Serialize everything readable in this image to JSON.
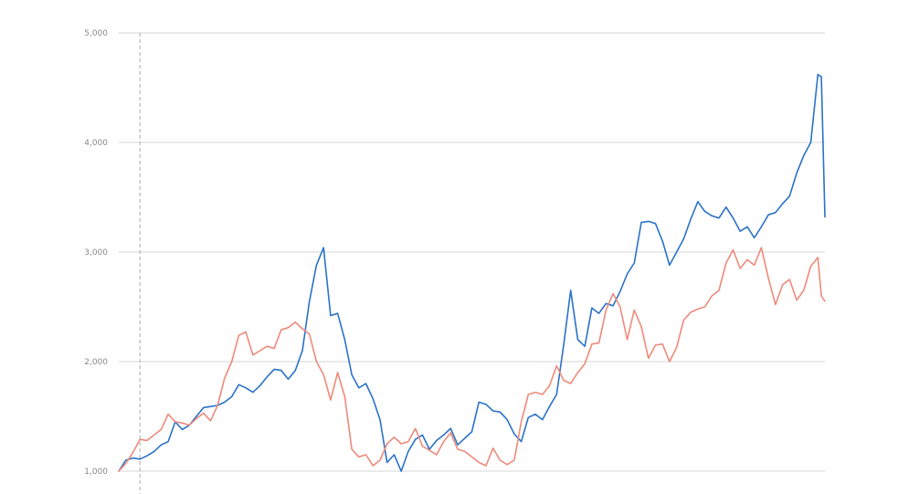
{
  "chart_data": {
    "type": "line",
    "title": "",
    "xlabel": "",
    "ylabel": "",
    "grid": true,
    "legend": "none",
    "x_index_range": [
      0,
      100
    ],
    "ylim": [
      1000,
      5000
    ],
    "y_ticks": [
      {
        "value": 1000,
        "label": "1,000"
      },
      {
        "value": 2000,
        "label": "2,000"
      },
      {
        "value": 3000,
        "label": "3,000"
      },
      {
        "value": 4000,
        "label": "4,000"
      },
      {
        "value": 5000,
        "label": "5,000"
      }
    ],
    "marker_x": 3,
    "series": [
      {
        "color": "#2a72c9",
        "values": [
          [
            0,
            1000
          ],
          [
            1,
            1100
          ],
          [
            2,
            1120
          ],
          [
            3,
            1110
          ],
          [
            4,
            1140
          ],
          [
            5,
            1180
          ],
          [
            6,
            1240
          ],
          [
            7,
            1270
          ],
          [
            8,
            1450
          ],
          [
            9,
            1380
          ],
          [
            10,
            1420
          ],
          [
            11,
            1500
          ],
          [
            12,
            1580
          ],
          [
            13,
            1590
          ],
          [
            14,
            1600
          ],
          [
            15,
            1630
          ],
          [
            16,
            1680
          ],
          [
            17,
            1790
          ],
          [
            18,
            1760
          ],
          [
            19,
            1720
          ],
          [
            20,
            1780
          ],
          [
            21,
            1860
          ],
          [
            22,
            1930
          ],
          [
            23,
            1920
          ],
          [
            24,
            1840
          ],
          [
            25,
            1920
          ],
          [
            26,
            2100
          ],
          [
            27,
            2550
          ],
          [
            28,
            2880
          ],
          [
            29,
            3040
          ],
          [
            30,
            2420
          ],
          [
            31,
            2440
          ],
          [
            32,
            2200
          ],
          [
            33,
            1880
          ],
          [
            34,
            1760
          ],
          [
            35,
            1800
          ],
          [
            36,
            1660
          ],
          [
            37,
            1470
          ],
          [
            38,
            1080
          ],
          [
            39,
            1150
          ],
          [
            40,
            1000
          ],
          [
            41,
            1180
          ],
          [
            42,
            1290
          ],
          [
            43,
            1330
          ],
          [
            44,
            1200
          ],
          [
            45,
            1280
          ],
          [
            46,
            1330
          ],
          [
            47,
            1390
          ],
          [
            48,
            1240
          ],
          [
            49,
            1300
          ],
          [
            50,
            1360
          ],
          [
            51,
            1630
          ],
          [
            52,
            1610
          ],
          [
            53,
            1550
          ],
          [
            54,
            1540
          ],
          [
            55,
            1470
          ],
          [
            56,
            1340
          ],
          [
            57,
            1270
          ],
          [
            58,
            1490
          ],
          [
            59,
            1520
          ],
          [
            60,
            1470
          ],
          [
            61,
            1590
          ],
          [
            62,
            1700
          ],
          [
            63,
            2150
          ],
          [
            64,
            2650
          ],
          [
            65,
            2200
          ],
          [
            66,
            2140
          ],
          [
            67,
            2490
          ],
          [
            68,
            2440
          ],
          [
            69,
            2530
          ],
          [
            70,
            2510
          ],
          [
            71,
            2640
          ],
          [
            72,
            2800
          ],
          [
            73,
            2900
          ],
          [
            74,
            3270
          ],
          [
            75,
            3280
          ],
          [
            76,
            3260
          ],
          [
            77,
            3100
          ],
          [
            78,
            2880
          ],
          [
            79,
            3000
          ],
          [
            80,
            3120
          ],
          [
            81,
            3300
          ],
          [
            82,
            3460
          ],
          [
            83,
            3370
          ],
          [
            84,
            3330
          ],
          [
            85,
            3310
          ],
          [
            86,
            3410
          ],
          [
            87,
            3310
          ],
          [
            88,
            3190
          ],
          [
            89,
            3230
          ],
          [
            90,
            3130
          ],
          [
            91,
            3230
          ],
          [
            92,
            3340
          ],
          [
            93,
            3360
          ],
          [
            94,
            3440
          ],
          [
            95,
            3510
          ],
          [
            96,
            3720
          ],
          [
            97,
            3880
          ],
          [
            98,
            4000
          ],
          [
            99,
            4620
          ],
          [
            99.5,
            4600
          ],
          [
            100,
            3320
          ]
        ]
      },
      {
        "color": "#ee8a7a",
        "values": [
          [
            0,
            1000
          ],
          [
            1,
            1070
          ],
          [
            2,
            1170
          ],
          [
            3,
            1290
          ],
          [
            4,
            1280
          ],
          [
            5,
            1330
          ],
          [
            6,
            1380
          ],
          [
            7,
            1520
          ],
          [
            8,
            1450
          ],
          [
            9,
            1440
          ],
          [
            10,
            1420
          ],
          [
            11,
            1480
          ],
          [
            12,
            1530
          ],
          [
            13,
            1460
          ],
          [
            14,
            1600
          ],
          [
            15,
            1850
          ],
          [
            16,
            2000
          ],
          [
            17,
            2240
          ],
          [
            18,
            2270
          ],
          [
            19,
            2060
          ],
          [
            20,
            2100
          ],
          [
            21,
            2140
          ],
          [
            22,
            2120
          ],
          [
            23,
            2290
          ],
          [
            24,
            2310
          ],
          [
            25,
            2360
          ],
          [
            26,
            2300
          ],
          [
            27,
            2250
          ],
          [
            28,
            2000
          ],
          [
            29,
            1880
          ],
          [
            30,
            1650
          ],
          [
            31,
            1900
          ],
          [
            32,
            1680
          ],
          [
            33,
            1200
          ],
          [
            34,
            1130
          ],
          [
            35,
            1150
          ],
          [
            36,
            1050
          ],
          [
            37,
            1100
          ],
          [
            38,
            1250
          ],
          [
            39,
            1310
          ],
          [
            40,
            1250
          ],
          [
            41,
            1270
          ],
          [
            42,
            1390
          ],
          [
            43,
            1230
          ],
          [
            44,
            1190
          ],
          [
            45,
            1150
          ],
          [
            46,
            1270
          ],
          [
            47,
            1350
          ],
          [
            48,
            1200
          ],
          [
            49,
            1180
          ],
          [
            50,
            1130
          ],
          [
            51,
            1080
          ],
          [
            52,
            1050
          ],
          [
            53,
            1210
          ],
          [
            54,
            1100
          ],
          [
            55,
            1060
          ],
          [
            56,
            1100
          ],
          [
            57,
            1450
          ],
          [
            58,
            1700
          ],
          [
            59,
            1720
          ],
          [
            60,
            1700
          ],
          [
            61,
            1780
          ],
          [
            62,
            1960
          ],
          [
            63,
            1830
          ],
          [
            64,
            1800
          ],
          [
            65,
            1900
          ],
          [
            66,
            1980
          ],
          [
            67,
            2160
          ],
          [
            68,
            2170
          ],
          [
            69,
            2470
          ],
          [
            70,
            2620
          ],
          [
            71,
            2500
          ],
          [
            72,
            2200
          ],
          [
            73,
            2470
          ],
          [
            74,
            2320
          ],
          [
            75,
            2030
          ],
          [
            76,
            2150
          ],
          [
            77,
            2160
          ],
          [
            78,
            2000
          ],
          [
            79,
            2130
          ],
          [
            80,
            2380
          ],
          [
            81,
            2450
          ],
          [
            82,
            2480
          ],
          [
            83,
            2500
          ],
          [
            84,
            2600
          ],
          [
            85,
            2650
          ],
          [
            86,
            2900
          ],
          [
            87,
            3020
          ],
          [
            88,
            2850
          ],
          [
            89,
            2930
          ],
          [
            90,
            2880
          ],
          [
            91,
            3040
          ],
          [
            92,
            2760
          ],
          [
            93,
            2520
          ],
          [
            94,
            2700
          ],
          [
            95,
            2750
          ],
          [
            96,
            2560
          ],
          [
            97,
            2650
          ],
          [
            98,
            2870
          ],
          [
            99,
            2950
          ],
          [
            99.5,
            2600
          ],
          [
            100,
            2550
          ]
        ]
      }
    ]
  }
}
